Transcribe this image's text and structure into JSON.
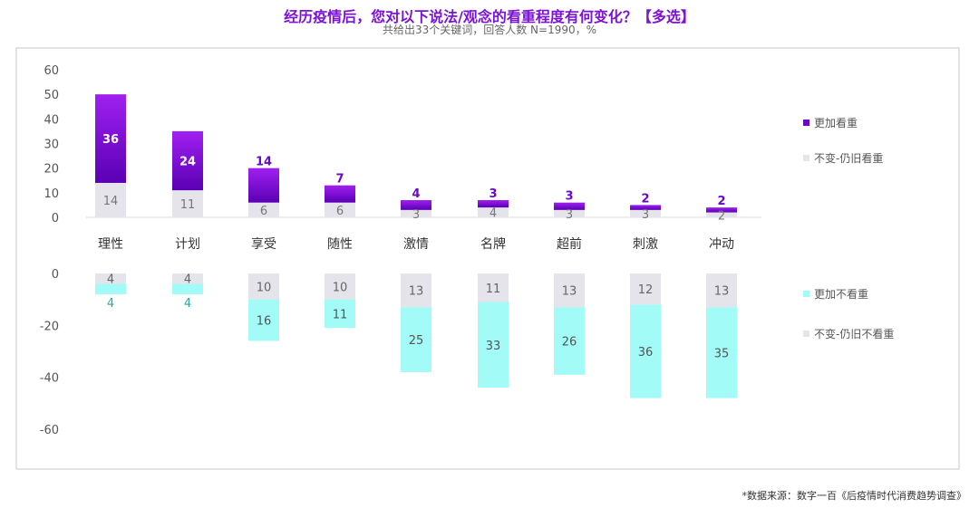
{
  "chart_data": {
    "type": "bar",
    "title": "经历疫情后，您对以下说法/观念的看重程度有何变化？【多选】",
    "subtitle": "共给出33个关键词，回答人数 N=1990，%",
    "categories": [
      "理性",
      "计划",
      "享受",
      "随性",
      "激情",
      "名牌",
      "超前",
      "刺激",
      "冲动"
    ],
    "top": {
      "ylim": [
        0,
        60
      ],
      "ticks": [
        "60",
        "50",
        "40",
        "30",
        "20",
        "10",
        "0"
      ],
      "series": [
        {
          "name": "不变-仍旧看重",
          "color": "#e4e4ea",
          "values": [
            14,
            11,
            6,
            6,
            3,
            4,
            3,
            3,
            2
          ]
        },
        {
          "name": "更加看重",
          "color": "#7a0fd8",
          "values": [
            36,
            24,
            14,
            7,
            4,
            3,
            3,
            2,
            2
          ]
        }
      ]
    },
    "bottom": {
      "ylim": [
        -60,
        0
      ],
      "ticks": [
        "0",
        "-20",
        "-40",
        "-60"
      ],
      "series": [
        {
          "name": "不变-仍旧不看重",
          "color": "#e4e4ea",
          "values": [
            4,
            4,
            10,
            10,
            13,
            11,
            13,
            12,
            13
          ]
        },
        {
          "name": "更加不看重",
          "color": "#a2fbf6",
          "values": [
            4,
            4,
            16,
            11,
            25,
            33,
            26,
            36,
            35
          ]
        }
      ]
    },
    "legend": "right"
  },
  "source": "*数据来源：数字一百《后疫情时代消费趋势调查》"
}
